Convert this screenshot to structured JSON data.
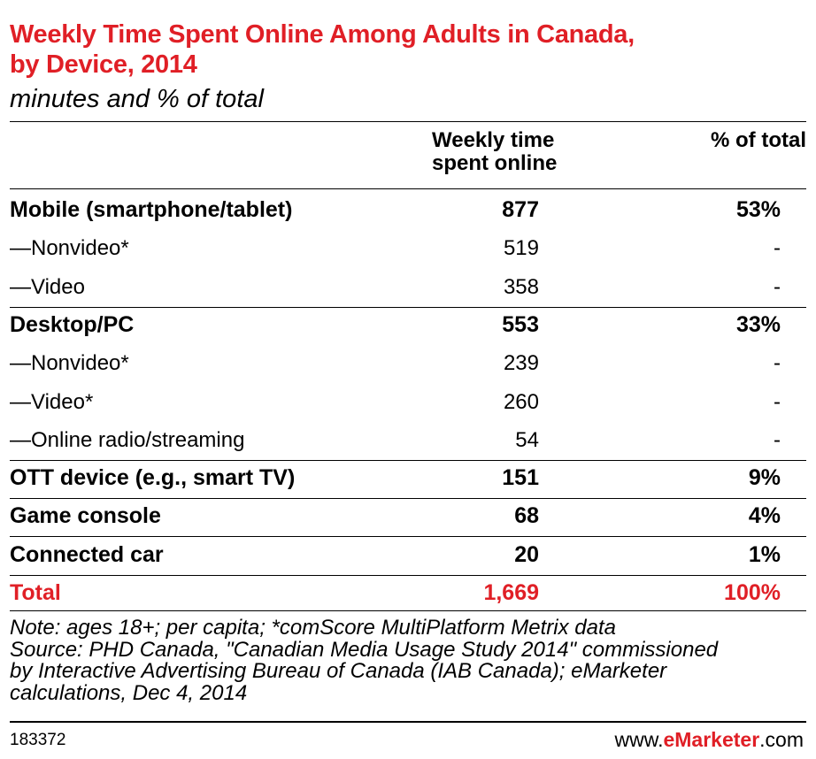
{
  "chart_data": {
    "type": "table",
    "title_line1": "Weekly Time Spent Online Among Adults in Canada,",
    "title_line2": "by Device, 2014",
    "subtitle": "minutes and % of total",
    "columns": {
      "time_line1": "Weekly time",
      "time_line2": "spent online",
      "pct": "% of total"
    },
    "rows": [
      {
        "label": "Mobile (smartphone/tablet)",
        "time": "877",
        "pct": "53%"
      },
      {
        "label": "—Nonvideo*",
        "time": "519",
        "pct": "-"
      },
      {
        "label": "—Video",
        "time": "358",
        "pct": "-"
      },
      {
        "label": "Desktop/PC",
        "time": "553",
        "pct": "33%"
      },
      {
        "label": "—Nonvideo*",
        "time": "239",
        "pct": "-"
      },
      {
        "label": "—Video*",
        "time": "260",
        "pct": "-"
      },
      {
        "label": "—Online radio/streaming",
        "time": "54",
        "pct": "-"
      },
      {
        "label": "OTT device (e.g., smart TV)",
        "time": "151",
        "pct": "9%"
      },
      {
        "label": "Game console",
        "time": "68",
        "pct": "4%"
      },
      {
        "label": "Connected car",
        "time": "20",
        "pct": "1%"
      },
      {
        "label": "Total",
        "time": "1,669",
        "pct": "100%"
      }
    ],
    "notes": {
      "line1": "Note: ages 18+; per capita; *comScore MultiPlatform Metrix data",
      "line2": "Source: PHD Canada, \"Canadian Media Usage Study 2014\" commissioned",
      "line3": "by Interactive Advertising Bureau of Canada (IAB Canada); eMarketer",
      "line4": "calculations, Dec 4, 2014"
    }
  },
  "footer": {
    "id": "183372",
    "brand_prefix": "www.",
    "brand_bold": "eMarketer",
    "brand_suffix": ".com"
  },
  "colors": {
    "accent": "#e01f26"
  }
}
